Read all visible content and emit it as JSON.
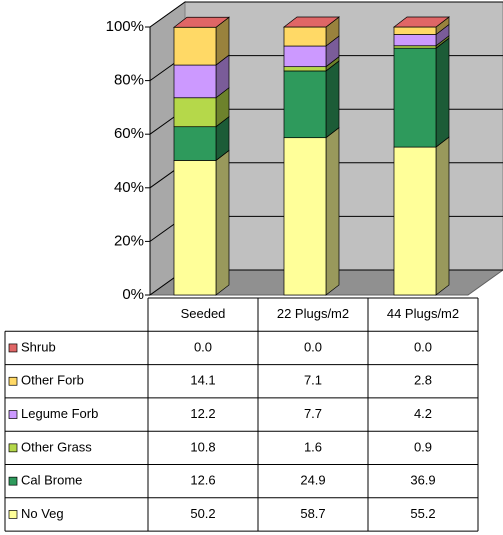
{
  "chart_data": {
    "type": "stacked_bar_3d",
    "categories": [
      "Seeded",
      "22 Plugs/m2",
      "44 Plugs/m2"
    ],
    "series": [
      {
        "name": "No Veg",
        "color": "#ffff99",
        "values": [
          50.2,
          58.7,
          55.2
        ]
      },
      {
        "name": "Cal Brome",
        "color": "#2e9a5c",
        "values": [
          12.6,
          24.9,
          36.9
        ]
      },
      {
        "name": "Other Grass",
        "color": "#b5d84a",
        "values": [
          10.8,
          1.6,
          0.9
        ]
      },
      {
        "name": "Legume Forb",
        "color": "#cc99ff",
        "values": [
          12.2,
          7.7,
          4.2
        ]
      },
      {
        "name": "Other Forb",
        "color": "#ffd966",
        "values": [
          14.1,
          7.1,
          2.8
        ]
      },
      {
        "name": "Shrub",
        "color": "#e06666",
        "values": [
          0,
          0,
          0
        ],
        "value_labels": [
          "0.0",
          "0.0",
          "0.0"
        ]
      }
    ],
    "ylim": [
      0,
      100
    ],
    "yticks": [
      {
        "value": 0,
        "label": "0%"
      },
      {
        "value": 20,
        "label": "20%"
      },
      {
        "value": 40,
        "label": "40%"
      },
      {
        "value": 60,
        "label": "60%"
      },
      {
        "value": 80,
        "label": "80%"
      },
      {
        "value": 100,
        "label": "100%"
      }
    ],
    "grid": true
  }
}
